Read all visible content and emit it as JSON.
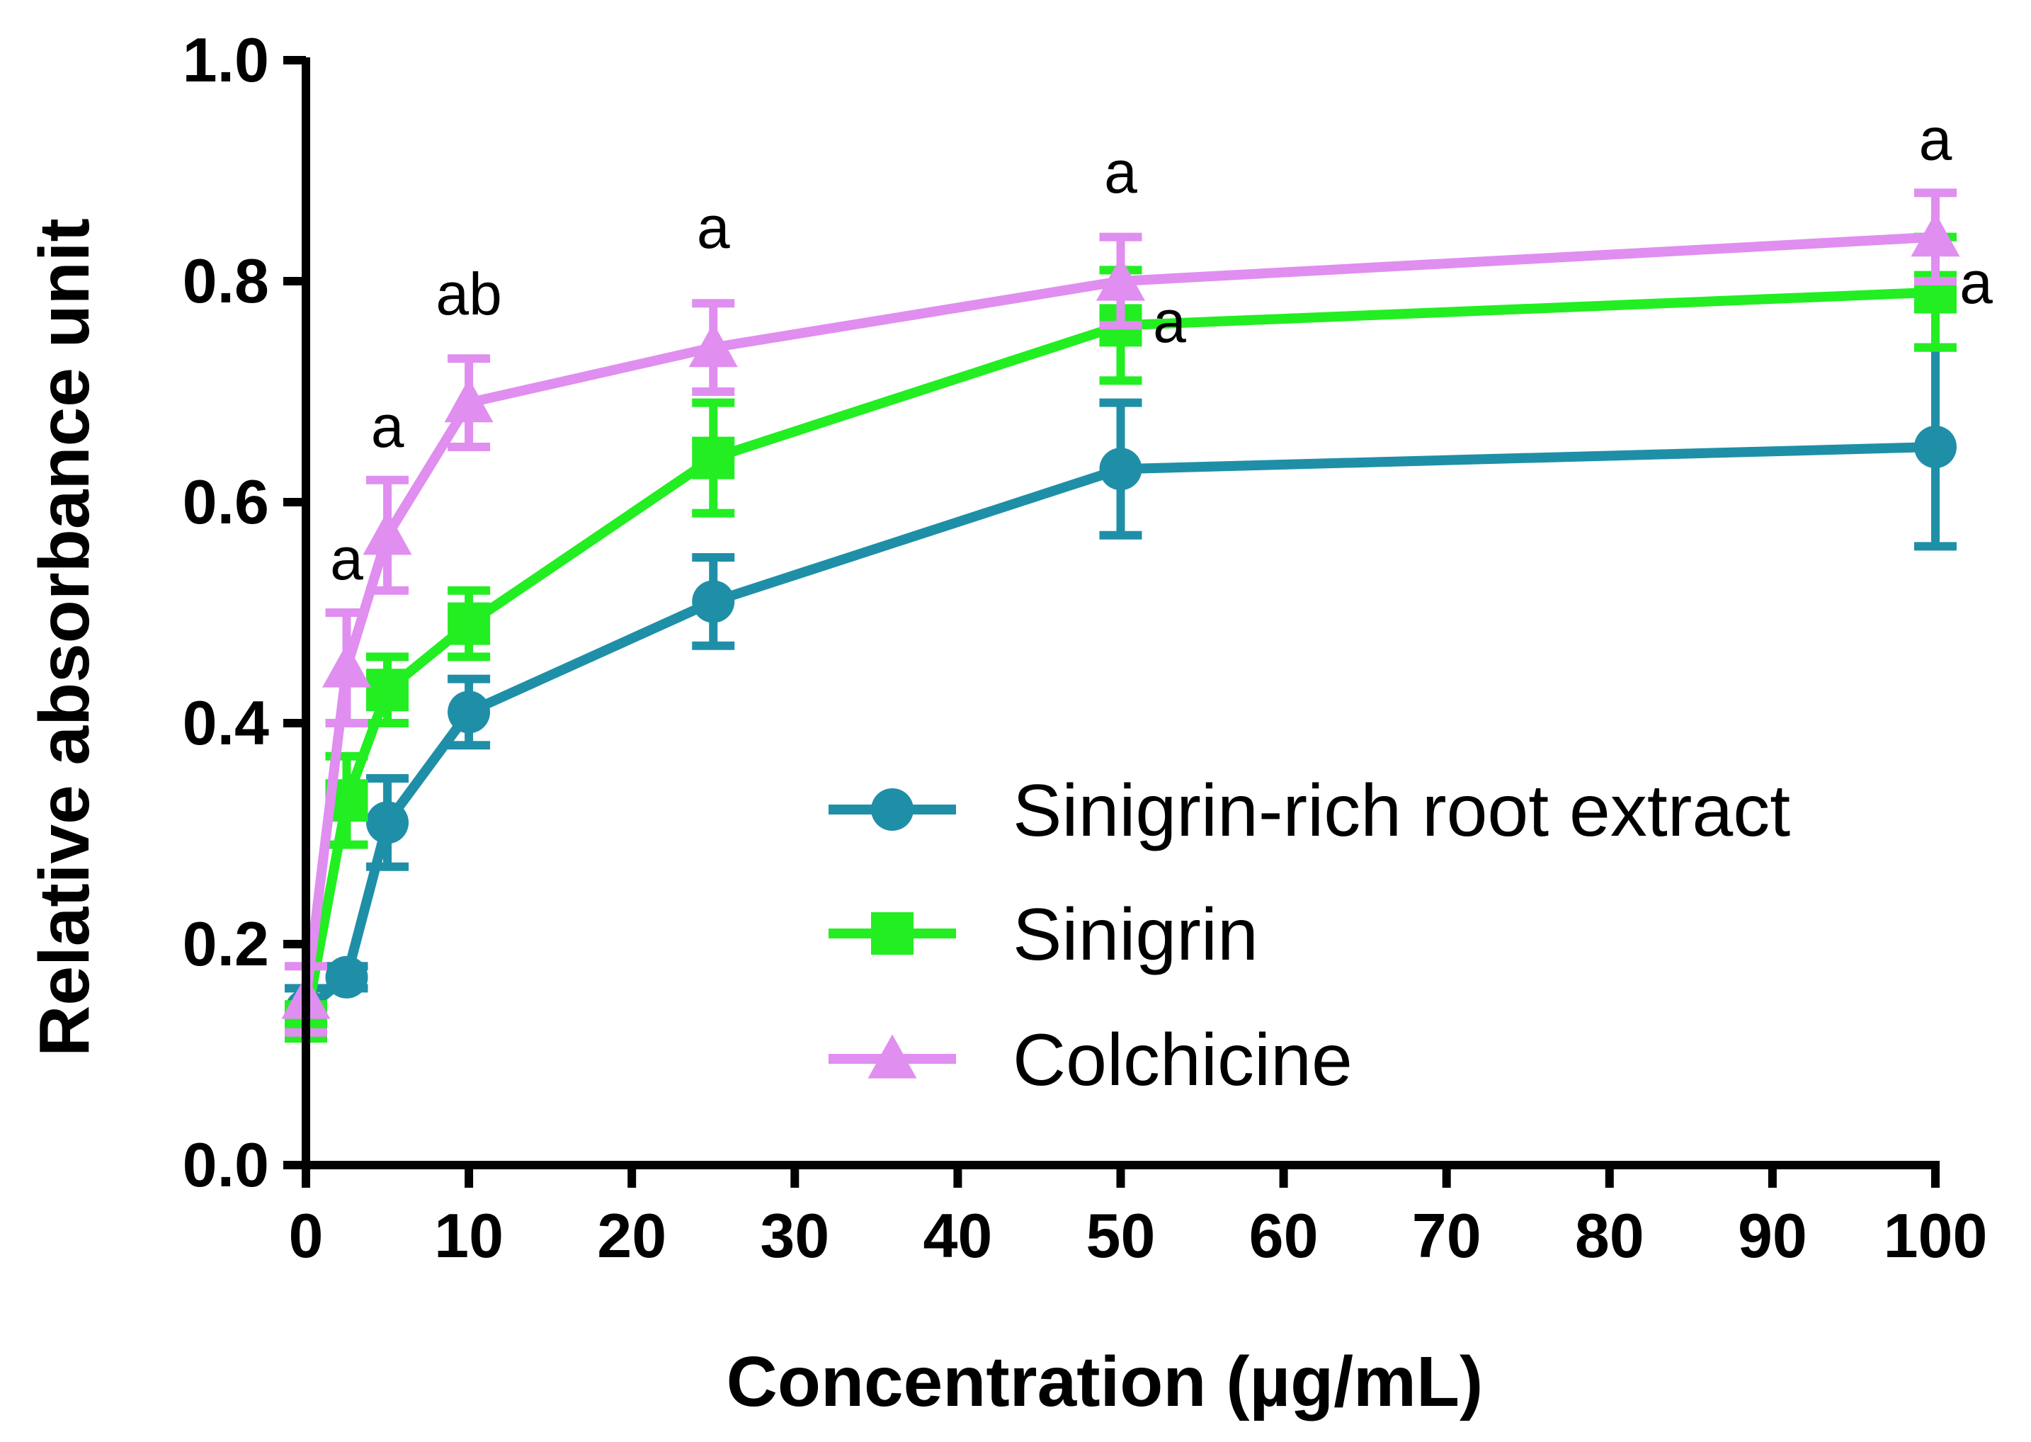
{
  "chart_data": {
    "type": "line",
    "title": "",
    "xlabel": "Concentration (µg/mL)",
    "ylabel": "Relative absorbance unit",
    "xlim": [
      0,
      100
    ],
    "ylim": [
      0.0,
      1.0
    ],
    "xticks": [
      0,
      10,
      20,
      30,
      40,
      50,
      60,
      70,
      80,
      90,
      100
    ],
    "xtick_labels": [
      "0",
      "10",
      "20",
      "30",
      "40",
      "50",
      "60",
      "70",
      "80",
      "90",
      "100"
    ],
    "yticks": [
      0.0,
      0.2,
      0.4,
      0.6,
      0.8,
      1.0
    ],
    "ytick_labels": [
      "0.0",
      "0.2",
      "0.4",
      "0.6",
      "0.8",
      "1.0"
    ],
    "grid": false,
    "legend_position": "lower-right",
    "series": [
      {
        "name": "Sinigrin-rich root extract",
        "color": "#1f8fa8",
        "marker": "circle",
        "x": [
          0,
          2.5,
          5,
          10,
          25,
          50,
          100
        ],
        "y": [
          0.14,
          0.17,
          0.31,
          0.41,
          0.51,
          0.63,
          0.65
        ],
        "err": [
          0.02,
          0.01,
          0.04,
          0.03,
          0.04,
          0.06,
          0.09
        ]
      },
      {
        "name": "Sinigrin",
        "color": "#22ee22",
        "marker": "square",
        "x": [
          0,
          2.5,
          5,
          10,
          25,
          50,
          100
        ],
        "y": [
          0.13,
          0.33,
          0.43,
          0.49,
          0.64,
          0.76,
          0.79
        ],
        "err": [
          0.01,
          0.04,
          0.03,
          0.03,
          0.05,
          0.05,
          0.05
        ]
      },
      {
        "name": "Colchicine",
        "color": "#e08ef0",
        "marker": "triangle",
        "x": [
          0,
          2.5,
          5,
          10,
          25,
          50,
          100
        ],
        "y": [
          0.15,
          0.45,
          0.57,
          0.69,
          0.74,
          0.8,
          0.84
        ],
        "err": [
          0.03,
          0.05,
          0.05,
          0.04,
          0.04,
          0.04,
          0.04
        ]
      }
    ],
    "annotations": [
      {
        "text": "a",
        "x": 2.5,
        "y": 0.53
      },
      {
        "text": "a",
        "x": 5,
        "y": 0.65
      },
      {
        "text": "ab",
        "x": 10,
        "y": 0.77
      },
      {
        "text": "a",
        "x": 25,
        "y": 0.83
      },
      {
        "text": "a",
        "x": 50,
        "y": 0.88
      },
      {
        "text": "a",
        "x": 100,
        "y": 0.91
      },
      {
        "text": "a",
        "x": 53,
        "y": 0.745
      },
      {
        "text": "a",
        "x": 102.5,
        "y": 0.78
      }
    ]
  }
}
